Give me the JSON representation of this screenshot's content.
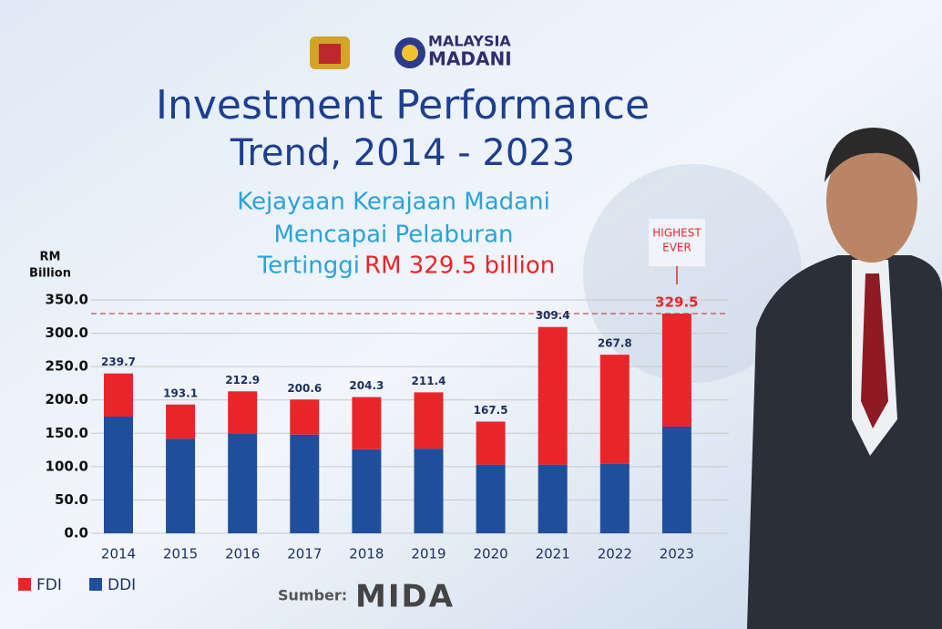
{
  "header": {
    "logo_text": [
      "MALAYSIA",
      "MADANI"
    ]
  },
  "chart_data": {
    "type": "stacked-bar",
    "title_lines": [
      "Investment Performance",
      "Trend, 2014 - 2023"
    ],
    "subtitle_lines": [
      "Kejayaan Kerajaan Madani",
      "Mencapai Pelaburan",
      "Tertinggi"
    ],
    "subtitle_highlight": "RM 329.5 billion",
    "y_label": [
      "RM",
      "Billion"
    ],
    "annotation": [
      "HIGHEST",
      "EVER"
    ],
    "categories": [
      "2014",
      "2015",
      "2016",
      "2017",
      "2018",
      "2019",
      "2020",
      "2021",
      "2022",
      "2023"
    ],
    "series": [
      {
        "name": "FDI",
        "color": "#e8262a",
        "values": [
          64.7,
          51.1,
          62.9,
          52.6,
          78.3,
          84.4,
          64.5,
          206.4,
          163.8,
          169.5
        ]
      },
      {
        "name": "DDI",
        "color": "#1f4e9c",
        "values": [
          175,
          142,
          150,
          148,
          126,
          127,
          103,
          103,
          104,
          160
        ]
      }
    ],
    "totals": [
      239.7,
      193.1,
      212.9,
      200.6,
      204.3,
      211.4,
      167.5,
      309.4,
      267.8,
      329.5
    ],
    "ylim": [
      0,
      350
    ],
    "yticks": [
      {
        "value": 0,
        "label": "0.0"
      },
      {
        "value": 50,
        "label": "50.0"
      },
      {
        "value": 100,
        "label": "100.0"
      },
      {
        "value": 150,
        "label": "150.0"
      },
      {
        "value": 200,
        "label": "200.0"
      },
      {
        "value": 250,
        "label": "250.0"
      },
      {
        "value": 300,
        "label": "300.0"
      },
      {
        "value": 350,
        "label": "350.0"
      }
    ],
    "grid": true,
    "legend": "bottom-left"
  },
  "footer": {
    "source_label": "Sumber:",
    "source": "MIDA"
  }
}
